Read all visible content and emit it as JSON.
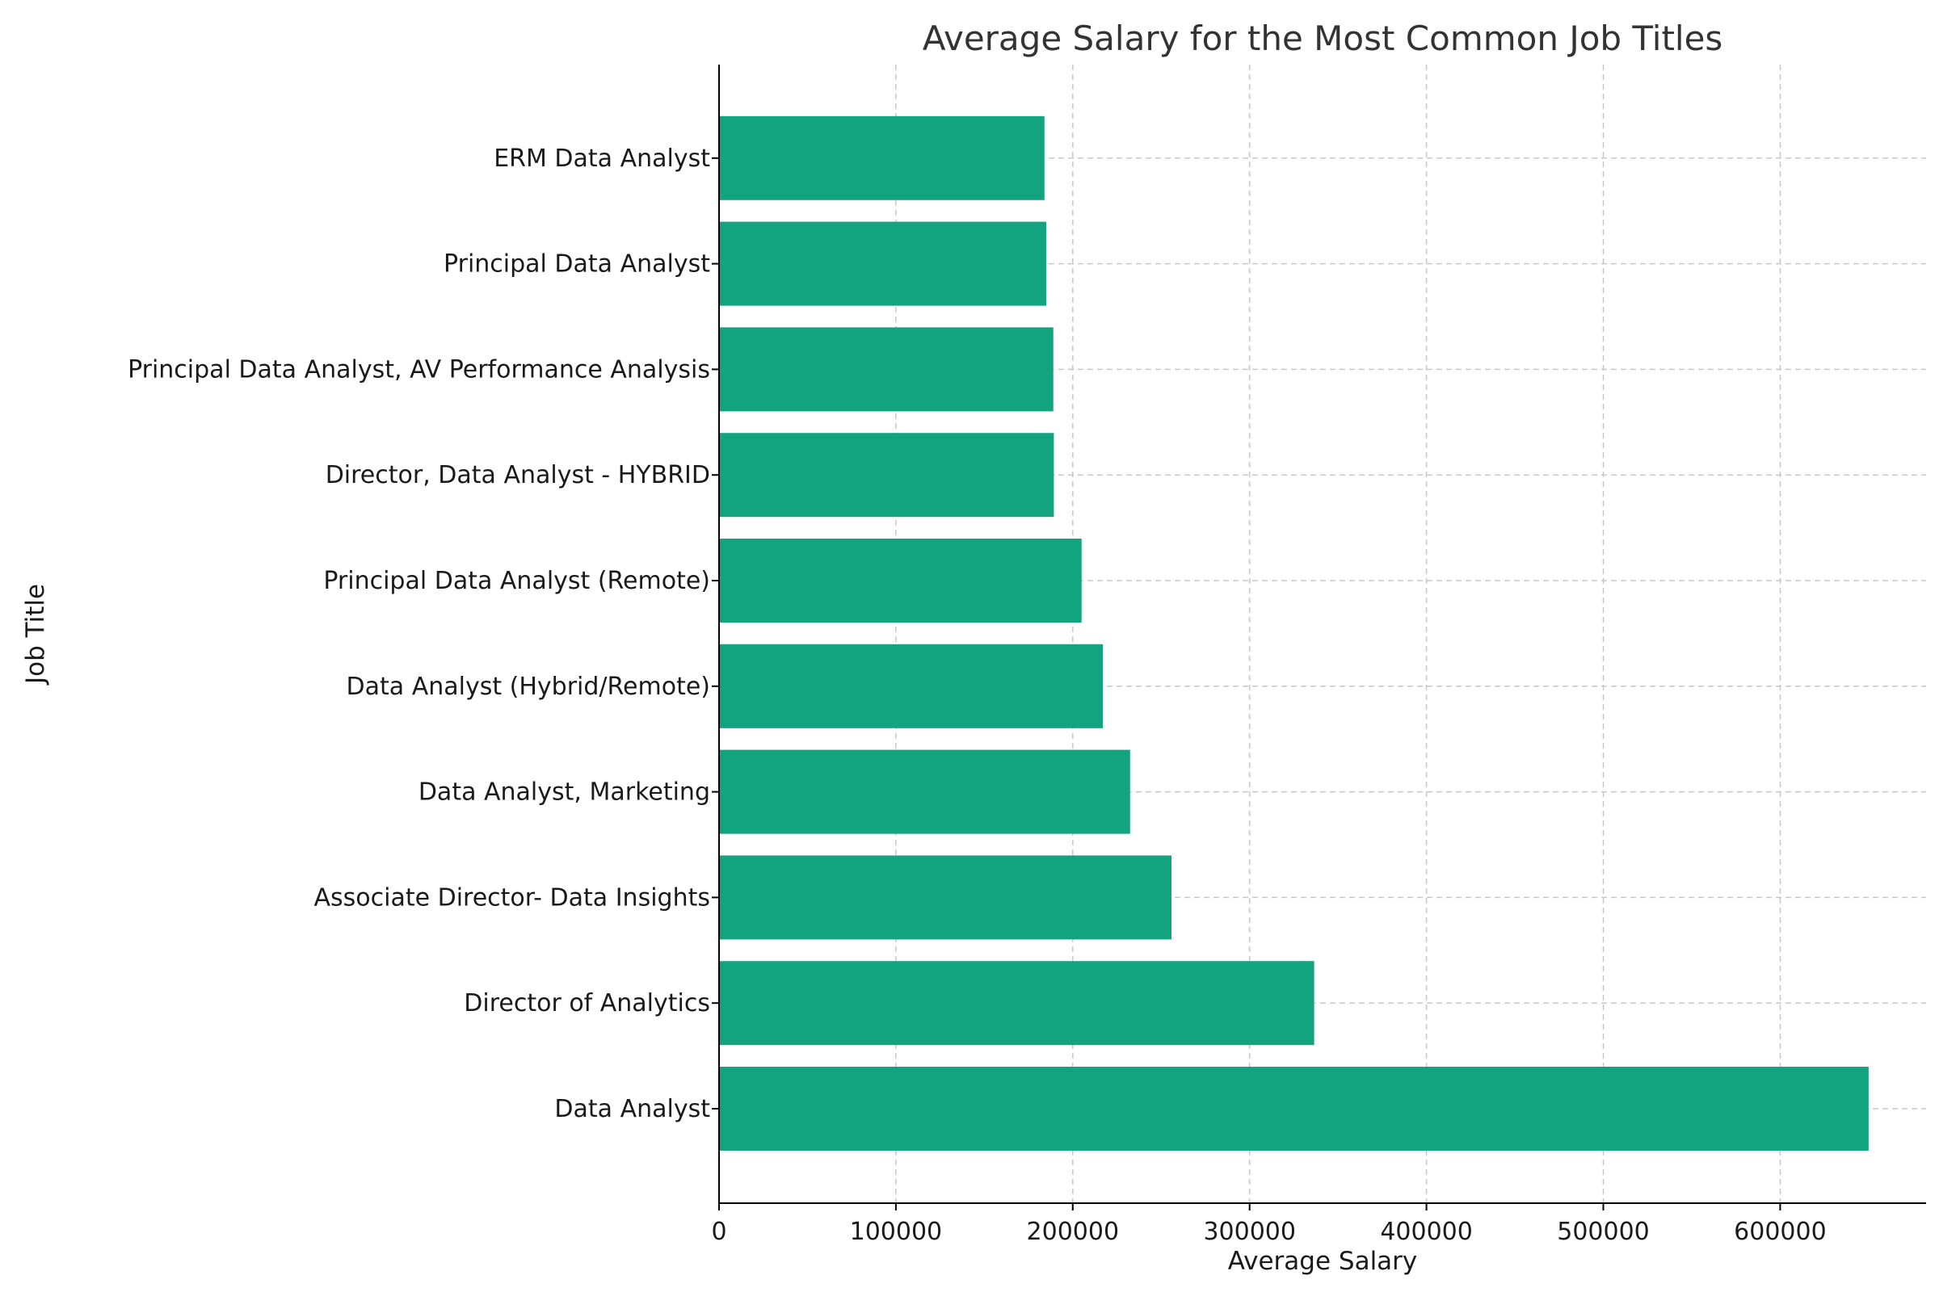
{
  "chart_data": {
    "type": "bar",
    "orientation": "horizontal",
    "title": "Average Salary for the Most Common Job Titles",
    "xlabel": "Average Salary",
    "ylabel": "Job Title",
    "categories": [
      "Data Analyst",
      "Director of Analytics",
      "Associate Director- Data Insights",
      "Data Analyst, Marketing",
      "Data Analyst (Hybrid/Remote)",
      "Principal Data Analyst (Remote)",
      "Director, Data Analyst - HYBRID",
      "Principal Data Analyst, AV Performance Analysis",
      "Principal Data Analyst",
      "ERM Data Analyst"
    ],
    "values": [
      650000,
      336500,
      255829.5,
      232423,
      217000,
      205000,
      189309,
      189000,
      185000,
      184000
    ],
    "xlim": [
      0,
      682500
    ],
    "xticks": [
      0,
      100000,
      200000,
      300000,
      400000,
      500000,
      600000
    ],
    "xtick_labels": [
      "0",
      "100000",
      "200000",
      "300000",
      "400000",
      "500000",
      "600000"
    ],
    "grid": true,
    "bar_color": "#12a37f"
  }
}
